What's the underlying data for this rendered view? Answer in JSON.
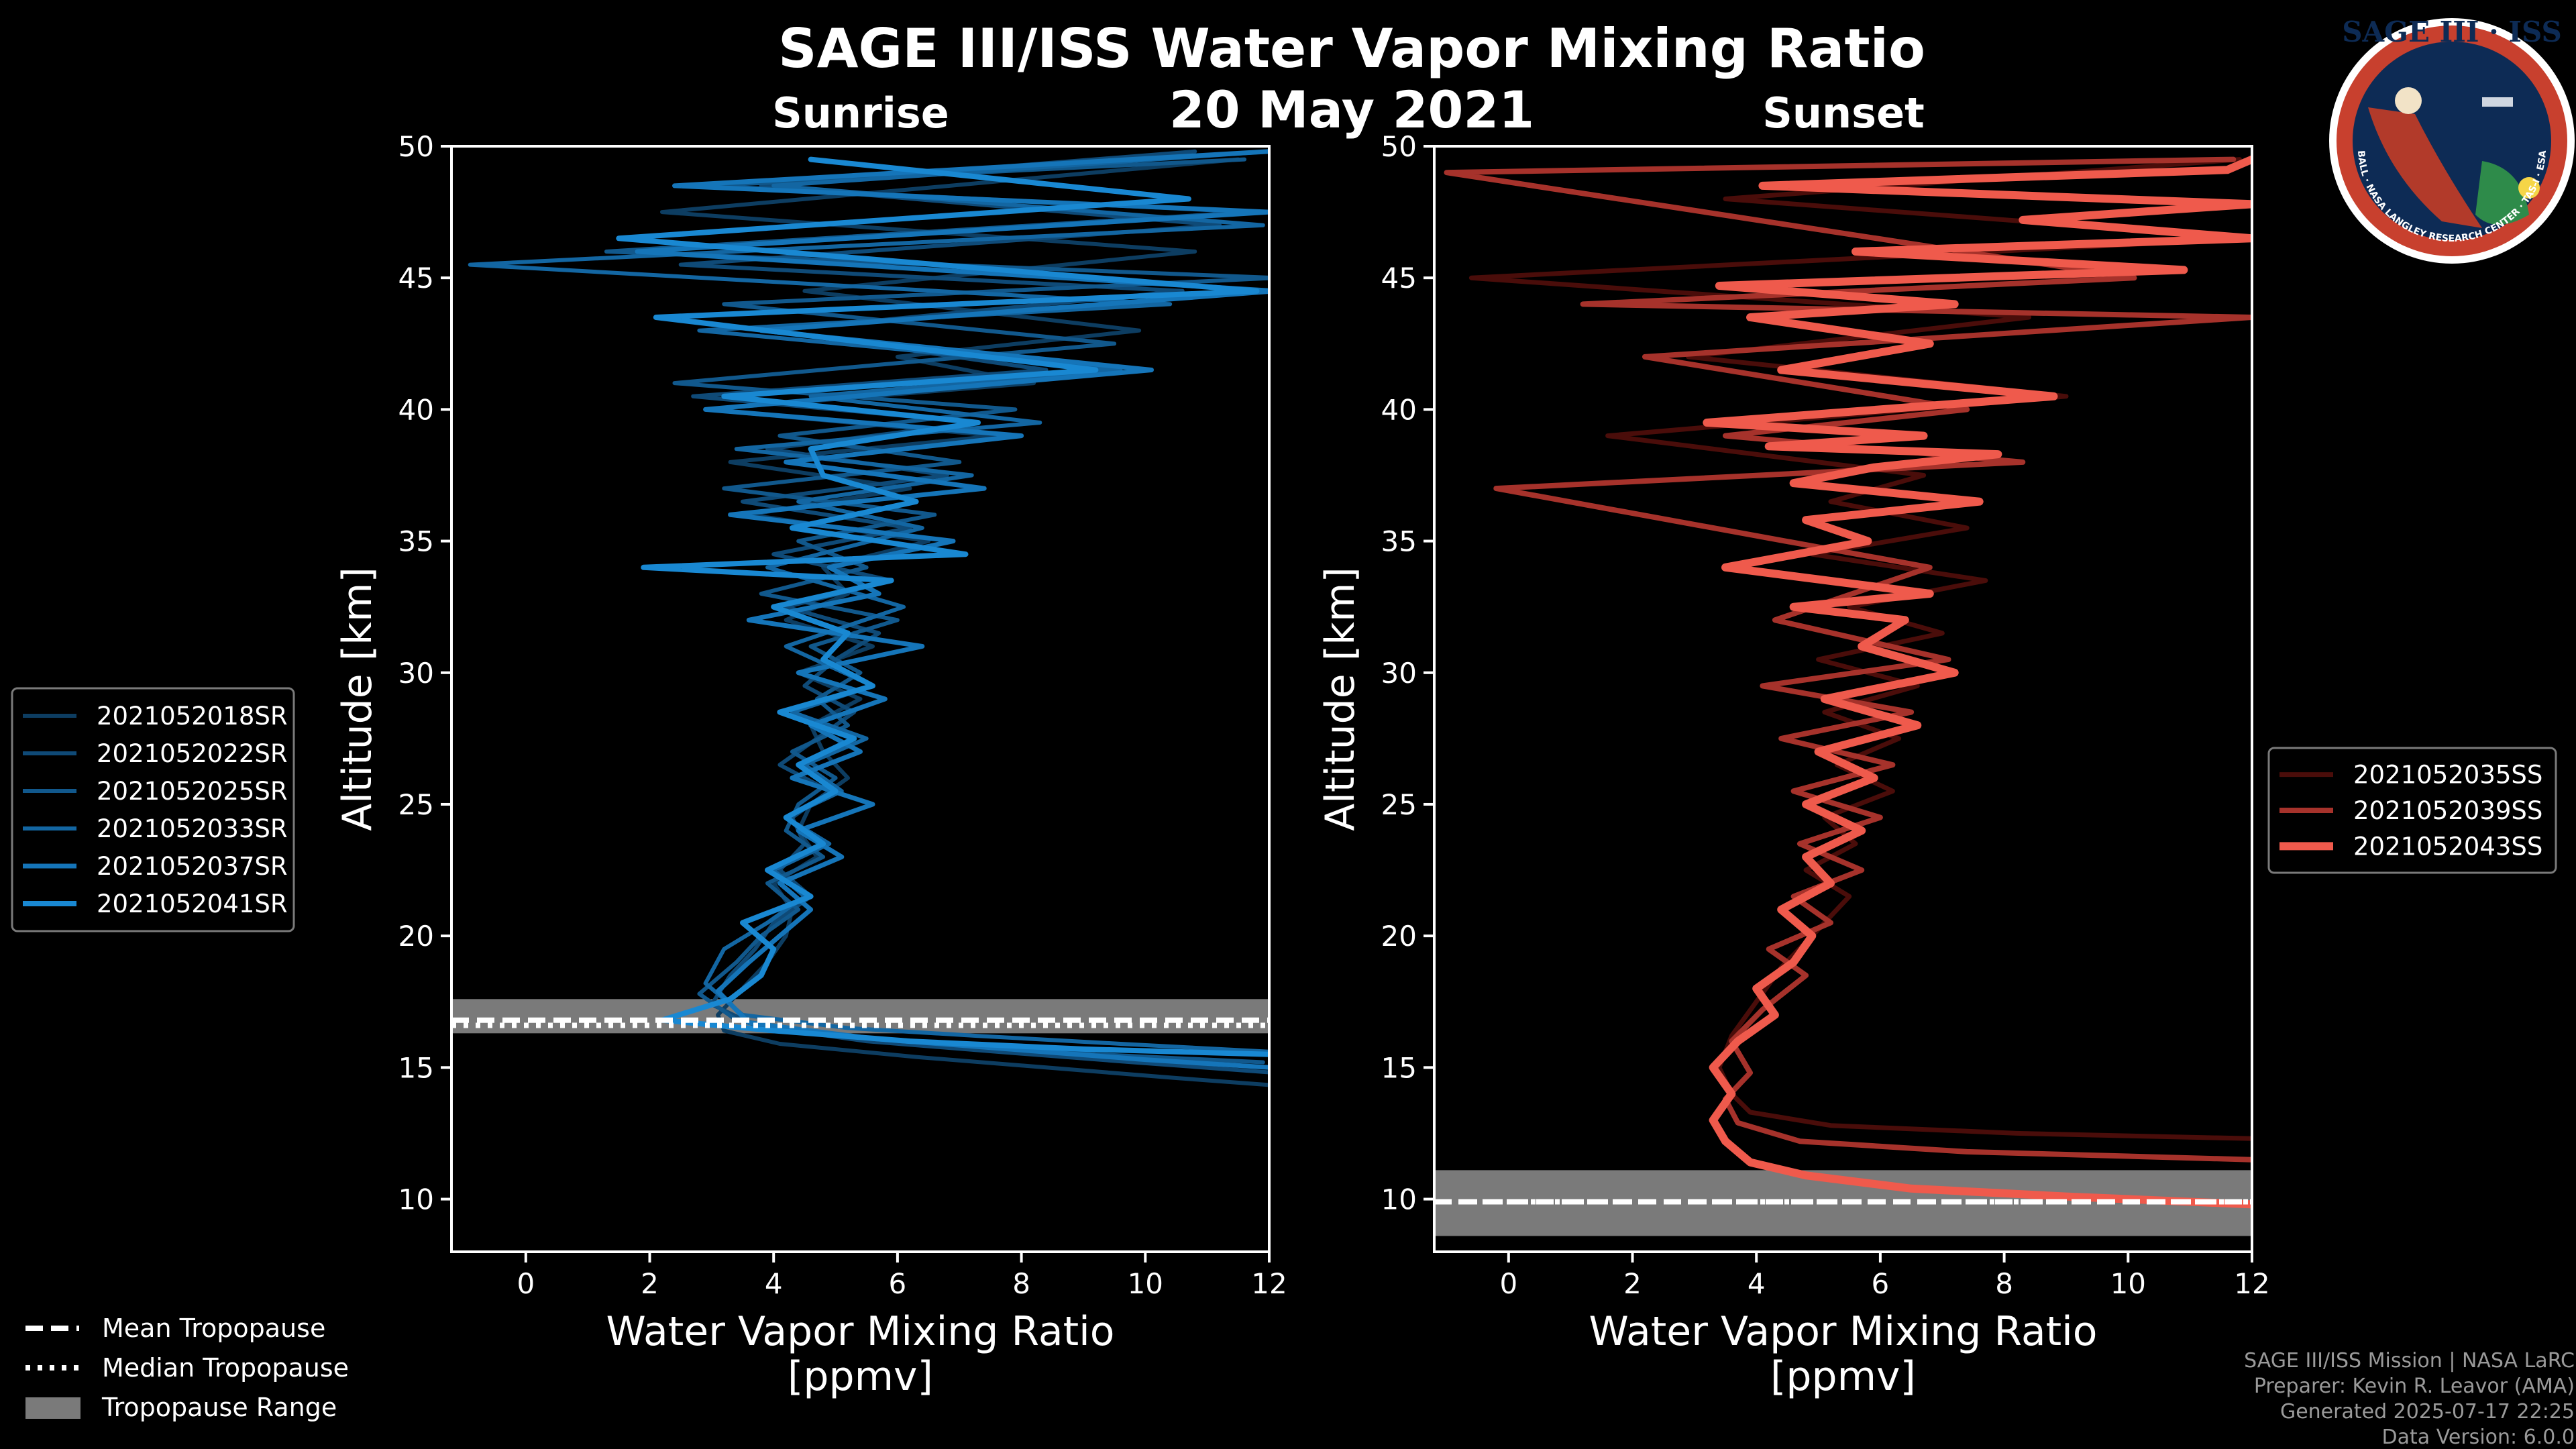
{
  "title": "SAGE III/ISS Water Vapor Mixing Ratio",
  "date": "20 May 2021",
  "footer": {
    "line1": "SAGE III/ISS Mission | NASA LaRC",
    "line2": "Preparer: Kevin R. Leavor (AMA)",
    "line3": "Generated 2025-07-17 22:25",
    "line4": "Data Version: 6.0.0"
  },
  "logo": {
    "text": "SAGE III · ISS",
    "ring_text": "BALL · NASA LANGLEY RESEARCH CENTER · TAS-I · ESA"
  },
  "tropopause_legend": [
    {
      "label": "Mean Tropopause",
      "style": "dashed"
    },
    {
      "label": "Median Tropopause",
      "style": "dotted"
    },
    {
      "label": "Tropopause Range",
      "style": "patch"
    }
  ],
  "chart_data": [
    {
      "type": "line",
      "panel": "Sunrise",
      "title": "Sunrise",
      "xlabel": "Water Vapor Mixing Ratio\n[ppmv]",
      "ylabel": "Altitude [km]",
      "xlim": [
        -1.2,
        12
      ],
      "ylim": [
        8,
        50
      ],
      "xticks": [
        0,
        2,
        4,
        6,
        8,
        10,
        12
      ],
      "yticks": [
        10,
        15,
        20,
        25,
        30,
        35,
        40,
        45,
        50
      ],
      "tropopause": {
        "mean": 16.8,
        "median": 16.6,
        "range": [
          16.3,
          17.6
        ]
      },
      "series": [
        {
          "name": "2021052018SR",
          "color": "#0d3d61",
          "width": 6,
          "x": [
            12.2,
            10.5,
            8.4,
            6.3,
            4.1,
            3.2,
            3.1,
            3.5,
            3.9,
            4.2,
            4.3,
            4.0,
            4.7,
            4.4,
            4.6,
            5.2,
            4.8,
            4.6,
            5.4,
            4.4,
            5.6,
            4.2,
            5.2,
            4.8,
            6.5,
            3.6,
            6.2,
            3.3,
            7.6,
            2.9,
            8.2,
            6.0,
            9.9,
            4.5,
            10.8,
            2.2,
            11.5
          ],
          "y": [
            14.3,
            14.6,
            15.0,
            15.4,
            15.9,
            16.4,
            17.0,
            18.0,
            19.0,
            20.0,
            21.0,
            22.0,
            23.0,
            24.0,
            25.0,
            26.0,
            27.0,
            28.0,
            29.0,
            30.0,
            31.0,
            32.0,
            33.0,
            34.0,
            35.0,
            36.0,
            37.0,
            38.0,
            39.0,
            40.0,
            41.0,
            42.0,
            43.0,
            44.5,
            46.0,
            47.5,
            49.5
          ]
        },
        {
          "name": "2021052022SR",
          "color": "#0f4a77",
          "width": 6,
          "x": [
            12.1,
            9.8,
            7.6,
            5.5,
            3.7,
            3.0,
            3.3,
            3.7,
            4.0,
            4.6,
            4.1,
            4.5,
            4.3,
            4.9,
            4.1,
            4.7,
            5.3,
            4.5,
            5.0,
            5.7,
            4.2,
            5.9,
            4.0,
            6.2,
            3.5,
            6.8,
            3.9,
            7.3,
            2.7,
            8.4,
            4.0,
            10.6,
            2.5,
            11.2,
            3.8,
            10.8
          ],
          "y": [
            14.8,
            15.2,
            15.6,
            16.0,
            16.6,
            17.4,
            18.5,
            19.5,
            20.5,
            21.5,
            22.5,
            23.5,
            24.5,
            25.5,
            26.5,
            27.5,
            28.5,
            29.5,
            30.5,
            31.5,
            32.5,
            33.5,
            34.5,
            35.5,
            36.5,
            37.5,
            38.5,
            39.5,
            40.5,
            41.5,
            43.0,
            44.5,
            45.5,
            47.0,
            48.5,
            49.8
          ]
        },
        {
          "name": "2021052025SR",
          "color": "#11588c",
          "width": 6,
          "x": [
            11.9,
            9.2,
            7.0,
            5.0,
            3.4,
            2.8,
            3.4,
            3.8,
            4.4,
            3.9,
            4.8,
            4.2,
            4.4,
            5.0,
            4.3,
            5.2,
            4.7,
            5.4,
            4.6,
            6.0,
            3.8,
            5.5,
            4.4,
            6.6,
            3.2,
            7.0,
            4.1,
            7.9,
            2.4,
            9.5,
            3.2,
            12.1,
            1.3,
            11.7,
            2.9,
            11.6
          ],
          "y": [
            15.2,
            15.5,
            15.9,
            16.2,
            16.8,
            17.8,
            19.0,
            20.0,
            21.0,
            22.0,
            23.0,
            24.0,
            25.0,
            26.0,
            27.0,
            28.0,
            29.0,
            30.0,
            31.0,
            32.0,
            33.0,
            34.0,
            35.0,
            36.0,
            37.0,
            38.0,
            39.0,
            40.0,
            41.0,
            42.5,
            44.0,
            45.0,
            46.0,
            47.5,
            48.5,
            49.5
          ]
        },
        {
          "name": "2021052033SR",
          "color": "#1366a2",
          "width": 6,
          "x": [
            12.0,
            9.6,
            7.3,
            5.2,
            3.5,
            2.9,
            3.2,
            3.9,
            4.5,
            4.0,
            4.9,
            4.2,
            5.1,
            4.5,
            5.5,
            4.3,
            5.6,
            4.2,
            6.1,
            3.9,
            6.4,
            4.4,
            7.2,
            3.4,
            8.3,
            4.6,
            9.6,
            2.8,
            10.4,
            -0.9,
            11.9,
            4.0,
            12.0
          ],
          "y": [
            15.6,
            15.9,
            16.2,
            16.5,
            17.0,
            18.2,
            19.5,
            20.5,
            21.5,
            22.5,
            23.5,
            24.5,
            25.5,
            26.5,
            27.5,
            28.5,
            29.5,
            31.0,
            32.5,
            34.0,
            35.5,
            36.5,
            37.5,
            38.5,
            39.5,
            40.5,
            41.5,
            43.0,
            44.0,
            45.5,
            47.0,
            48.5,
            49.8
          ]
        },
        {
          "name": "2021052037SR",
          "color": "#1575b9",
          "width": 7,
          "x": [
            12.0,
            10.0,
            7.8,
            5.6,
            3.6,
            3.1,
            3.6,
            4.1,
            4.6,
            4.1,
            5.1,
            4.4,
            5.6,
            4.3,
            5.4,
            4.6,
            5.8,
            4.4,
            6.4,
            3.6,
            5.7,
            4.9,
            6.9,
            3.3,
            7.4,
            4.2,
            8.0,
            2.9,
            10.1,
            3.8,
            12.1,
            1.8,
            12.0,
            2.4,
            12.0
          ],
          "y": [
            15.0,
            15.3,
            15.7,
            16.1,
            16.7,
            17.9,
            19.0,
            20.0,
            21.0,
            22.0,
            23.0,
            24.0,
            25.0,
            26.0,
            27.0,
            28.0,
            29.0,
            30.0,
            31.0,
            32.0,
            33.0,
            34.0,
            35.0,
            36.0,
            37.0,
            38.0,
            39.0,
            40.0,
            41.5,
            43.0,
            44.5,
            46.0,
            47.5,
            48.5,
            49.8
          ]
        },
        {
          "name": "2021052041SR",
          "color": "#1988d2",
          "width": 8,
          "x": [
            12.0,
            9.0,
            6.2,
            4.0,
            2.2,
            3.3,
            3.8,
            4.0,
            3.5,
            4.6,
            3.9,
            4.8,
            4.2,
            5.0,
            4.4,
            5.3,
            4.1,
            5.6,
            4.8,
            5.2,
            4.0,
            5.9,
            1.9,
            7.1,
            4.3,
            6.3,
            4.8,
            4.6,
            7.3,
            3.2,
            9.2,
            2.1,
            11.8,
            1.5,
            10.7,
            4.6
          ],
          "y": [
            15.5,
            15.7,
            16.0,
            16.4,
            16.8,
            17.6,
            18.5,
            19.5,
            20.5,
            21.5,
            22.5,
            23.5,
            24.5,
            25.5,
            26.5,
            27.5,
            28.5,
            29.5,
            30.5,
            31.5,
            32.5,
            33.5,
            34.0,
            34.5,
            35.5,
            36.5,
            37.5,
            38.5,
            39.5,
            40.5,
            41.5,
            43.5,
            44.5,
            46.5,
            48.0,
            49.5
          ]
        }
      ]
    },
    {
      "type": "line",
      "panel": "Sunset",
      "title": "Sunset",
      "xlabel": "Water Vapor Mixing Ratio\n[ppmv]",
      "ylabel": "Altitude [km]",
      "xlim": [
        -1.2,
        12
      ],
      "ylim": [
        8,
        50
      ],
      "xticks": [
        0,
        2,
        4,
        6,
        8,
        10,
        12
      ],
      "yticks": [
        10,
        15,
        20,
        25,
        30,
        35,
        40,
        45,
        50
      ],
      "tropopause": {
        "mean": 9.9,
        "median": 9.9,
        "range": [
          8.6,
          11.1
        ]
      },
      "series": [
        {
          "name": "2021052035SS",
          "color": "#4a0d0a",
          "width": 7,
          "x": [
            12.0,
            8.2,
            5.2,
            3.9,
            3.6,
            3.4,
            3.6,
            4.0,
            4.4,
            4.9,
            5.5,
            4.8,
            5.6,
            5.1,
            6.2,
            5.3,
            6.3,
            5.1,
            6.6,
            5.0,
            7.0,
            5.5,
            7.7,
            4.9,
            7.4,
            5.2,
            6.7,
            1.6,
            9.0,
            2.9,
            8.4,
            -0.6,
            12.0,
            3.5,
            11.8
          ],
          "y": [
            12.3,
            12.5,
            12.8,
            13.3,
            14.0,
            15.0,
            16.2,
            17.5,
            18.8,
            20.0,
            21.5,
            22.5,
            23.5,
            24.5,
            25.5,
            26.5,
            27.5,
            28.5,
            29.5,
            30.5,
            31.5,
            32.5,
            33.5,
            34.5,
            35.5,
            36.5,
            37.5,
            39.0,
            40.5,
            42.0,
            43.5,
            45.0,
            46.5,
            48.0,
            49.5
          ]
        },
        {
          "name": "2021052039SS",
          "color": "#a6322b",
          "width": 8,
          "x": [
            12.0,
            7.4,
            4.7,
            3.7,
            3.5,
            3.9,
            3.6,
            4.1,
            4.8,
            4.2,
            5.2,
            4.6,
            5.7,
            4.7,
            6.0,
            4.6,
            6.2,
            4.4,
            6.5,
            4.1,
            7.1,
            4.3,
            6.8,
            -0.2,
            8.3,
            3.5,
            7.4,
            2.2,
            12.0,
            1.2,
            10.1,
            -1.0,
            11.7
          ],
          "y": [
            11.5,
            11.8,
            12.2,
            12.9,
            13.8,
            14.8,
            16.0,
            17.2,
            18.5,
            19.5,
            20.5,
            21.5,
            22.5,
            23.5,
            24.5,
            25.5,
            26.5,
            27.5,
            28.5,
            29.5,
            30.5,
            32.0,
            34.0,
            37.0,
            38.0,
            39.0,
            40.0,
            42.0,
            43.5,
            44.0,
            45.0,
            49.0,
            49.5
          ]
        },
        {
          "name": "2021052043SS",
          "color": "#ef5a4c",
          "width": 12,
          "x": [
            12.0,
            9.0,
            6.5,
            4.8,
            3.9,
            3.5,
            3.3,
            3.6,
            3.3,
            3.7,
            4.3,
            4.0,
            4.6,
            4.9,
            4.4,
            5.2,
            4.8,
            5.7,
            4.8,
            5.9,
            5.0,
            6.6,
            5.1,
            7.2,
            5.7,
            6.4,
            4.6,
            6.8,
            3.5,
            5.8,
            4.8,
            7.6,
            4.6,
            5.9,
            7.9,
            4.2,
            6.7,
            3.2,
            8.8,
            4.4,
            6.8,
            3.9,
            7.2,
            3.4,
            10.9,
            5.6,
            12.0,
            8.3,
            12.0,
            4.1,
            11.6,
            12.0
          ],
          "y": [
            9.8,
            10.1,
            10.4,
            10.9,
            11.4,
            12.2,
            13.0,
            14.0,
            15.0,
            16.0,
            17.0,
            18.0,
            19.0,
            20.0,
            21.0,
            22.0,
            23.0,
            24.0,
            25.0,
            26.0,
            27.0,
            28.0,
            29.0,
            30.0,
            31.0,
            32.0,
            32.5,
            33.0,
            34.0,
            35.0,
            35.8,
            36.5,
            37.2,
            37.8,
            38.3,
            38.6,
            39.0,
            39.5,
            40.5,
            41.5,
            42.5,
            43.5,
            44.0,
            44.7,
            45.3,
            46.0,
            46.5,
            47.2,
            47.8,
            48.5,
            49.1,
            49.5
          ]
        }
      ]
    }
  ]
}
